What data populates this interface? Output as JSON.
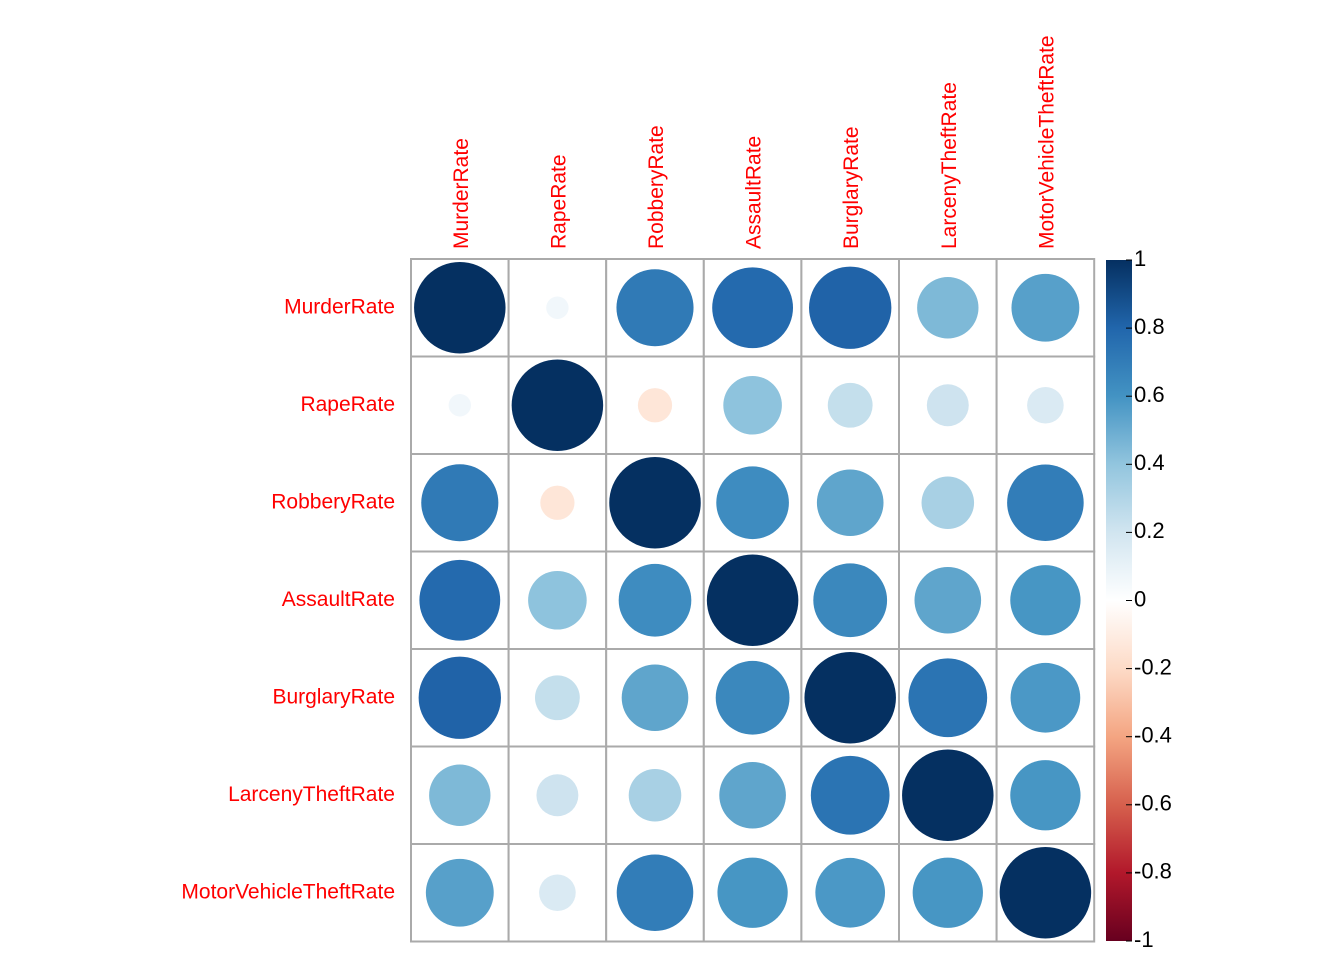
{
  "chart_data": {
    "type": "heatmap",
    "variables": [
      "MurderRate",
      "RapeRate",
      "RobberyRate",
      "AssaultRate",
      "BurglaryRate",
      "LarcenyTheftRate",
      "MotorVehicleTheftRate"
    ],
    "matrix": [
      [
        1.0,
        0.06,
        0.71,
        0.78,
        0.81,
        0.45,
        0.55
      ],
      [
        0.06,
        1.0,
        -0.14,
        0.41,
        0.24,
        0.21,
        0.16
      ],
      [
        0.71,
        -0.14,
        1.0,
        0.63,
        0.53,
        0.33,
        0.7
      ],
      [
        0.78,
        0.41,
        0.63,
        1.0,
        0.65,
        0.53,
        0.59
      ],
      [
        0.81,
        0.24,
        0.53,
        0.65,
        1.0,
        0.74,
        0.58
      ],
      [
        0.45,
        0.21,
        0.33,
        0.53,
        0.74,
        1.0,
        0.59
      ],
      [
        0.55,
        0.16,
        0.7,
        0.59,
        0.58,
        0.59,
        1.0
      ]
    ],
    "colorbar": {
      "min": -1,
      "max": 1,
      "ticks": [
        "1",
        "0.8",
        "0.6",
        "0.4",
        "0.2",
        "0",
        "-0.2",
        "-0.4",
        "-0.6",
        "-0.8",
        "-1"
      ],
      "palette": [
        "#67001F",
        "#B2182B",
        "#D6604D",
        "#F4A582",
        "#FDDBC7",
        "#FFFFFF",
        "#D1E5F0",
        "#92C5DE",
        "#4393C3",
        "#2166AC",
        "#053061"
      ]
    },
    "label_color": "#FF0000",
    "grid_color": "#AAAAAA",
    "legend_position": "right"
  }
}
